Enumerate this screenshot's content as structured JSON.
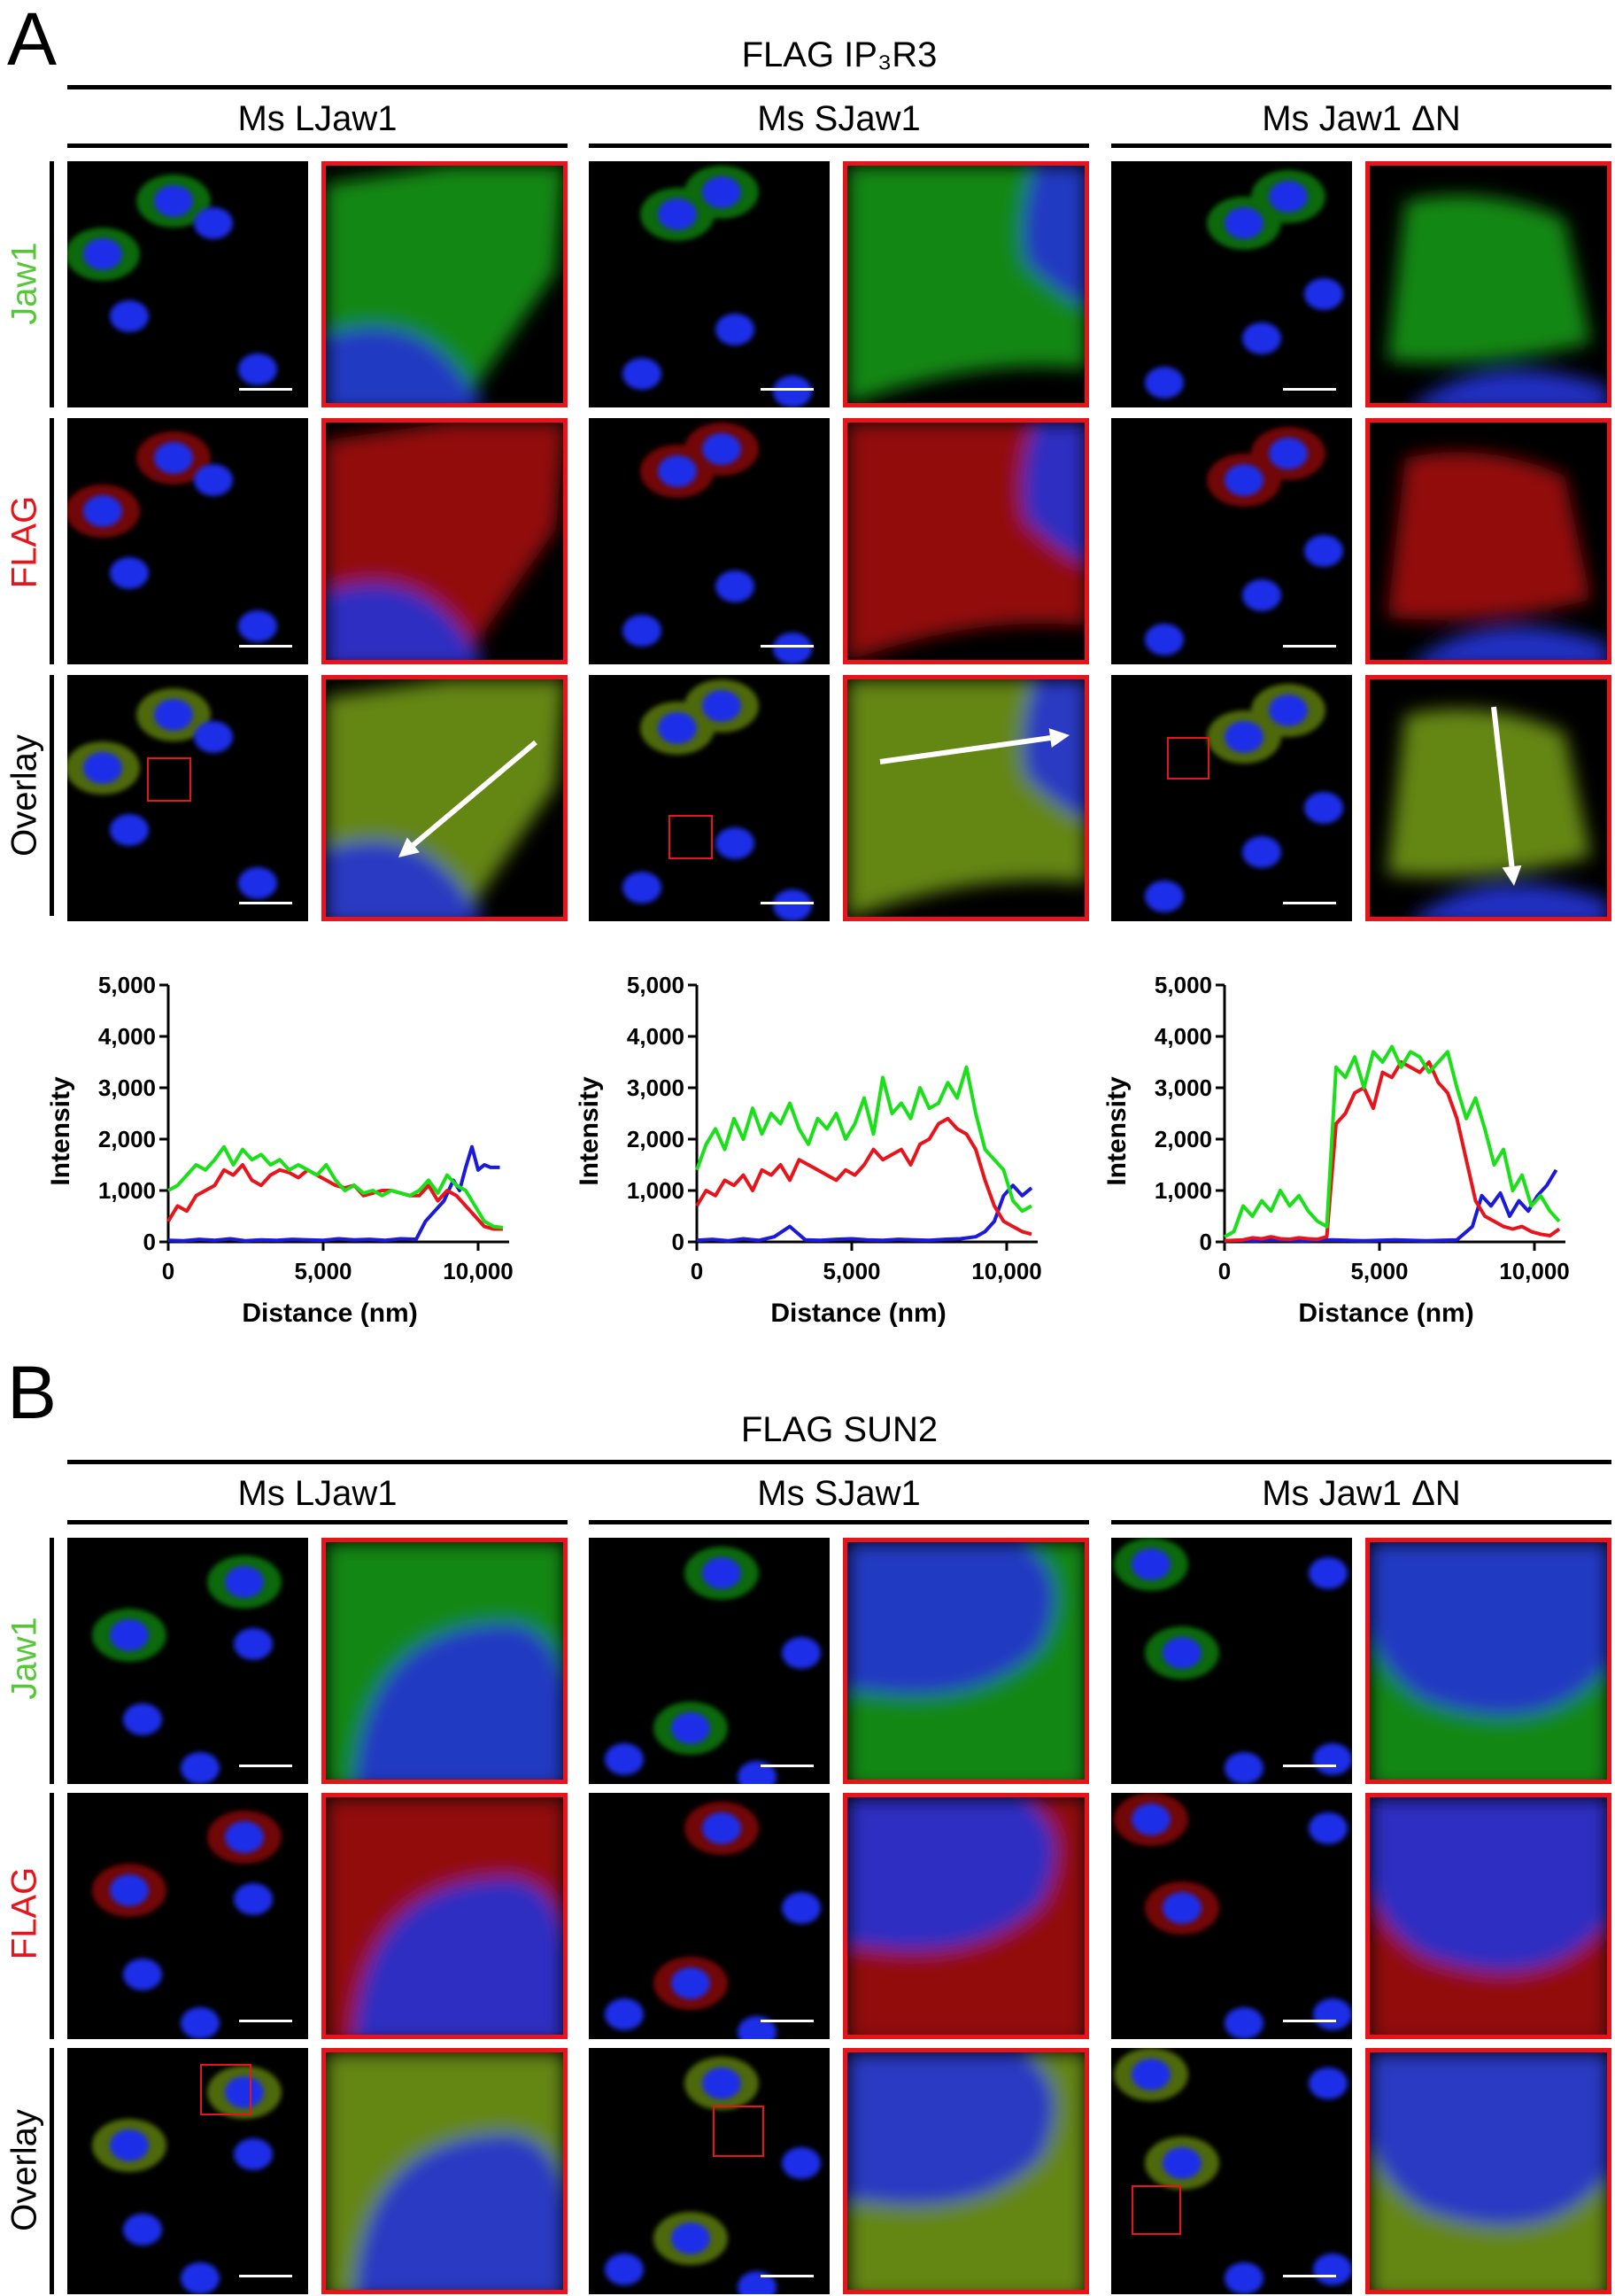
{
  "panel_a": {
    "letter": "A",
    "construct_title": "FLAG IP₃R3",
    "columns": [
      "Ms LJaw1",
      "Ms SJaw1",
      "Ms Jaw1 ΔN"
    ],
    "rows": [
      {
        "label": "Jaw1",
        "color": "#57c63a"
      },
      {
        "label": "FLAG",
        "color": "#e8141b"
      },
      {
        "label": "Overlay",
        "color": "#000000"
      }
    ]
  },
  "panel_b": {
    "letter": "B",
    "construct_title": "FLAG SUN2",
    "columns": [
      "Ms LJaw1",
      "Ms SJaw1",
      "Ms Jaw1 ΔN"
    ],
    "rows": [
      {
        "label": "Jaw1",
        "color": "#57c63a"
      },
      {
        "label": "FLAG",
        "color": "#e8141b"
      },
      {
        "label": "Overlay",
        "color": "#000000"
      }
    ]
  },
  "colors": {
    "green": "#19e019",
    "red": "#e8141b",
    "blue": "#1a1ad8"
  },
  "chart_data": [
    {
      "type": "line",
      "title": "",
      "xlabel": "Distance (nm)",
      "ylabel": "Intensity",
      "xlim": [
        0,
        11000
      ],
      "ylim": [
        0,
        5000
      ],
      "xticks": [
        "0",
        "5,000",
        "10,000"
      ],
      "xtick_values": [
        0,
        5000,
        10000
      ],
      "yticks": [
        "0",
        "1,000",
        "2,000",
        "3,000",
        "4,000",
        "5,000"
      ],
      "ytick_values": [
        0,
        1000,
        2000,
        3000,
        4000,
        5000
      ],
      "series": [
        {
          "color": "#19e019",
          "x": [
            0,
            300,
            600,
            900,
            1200,
            1500,
            1800,
            2100,
            2400,
            2700,
            3000,
            3300,
            3600,
            3900,
            4200,
            4500,
            4800,
            5100,
            5400,
            5700,
            6000,
            6300,
            6600,
            6900,
            7200,
            7500,
            7800,
            8100,
            8400,
            8700,
            9000,
            9300,
            9600,
            9900,
            10200,
            10500,
            10800
          ],
          "values": [
            1000,
            1100,
            1300,
            1500,
            1400,
            1600,
            1850,
            1500,
            1800,
            1600,
            1700,
            1500,
            1600,
            1400,
            1500,
            1400,
            1300,
            1500,
            1200,
            1000,
            1100,
            950,
            1000,
            900,
            1000,
            950,
            900,
            1000,
            1200,
            950,
            1300,
            1100,
            1000,
            700,
            400,
            300,
            280
          ]
        },
        {
          "color": "#e8141b",
          "x": [
            0,
            300,
            600,
            900,
            1200,
            1500,
            1800,
            2100,
            2400,
            2700,
            3000,
            3300,
            3600,
            3900,
            4200,
            4500,
            4800,
            5100,
            5400,
            5700,
            6000,
            6300,
            6600,
            6900,
            7200,
            7500,
            7800,
            8100,
            8400,
            8700,
            9000,
            9300,
            9600,
            9900,
            10200,
            10500,
            10800
          ],
          "values": [
            400,
            700,
            600,
            900,
            1000,
            1100,
            1400,
            1300,
            1500,
            1200,
            1100,
            1300,
            1400,
            1350,
            1250,
            1400,
            1300,
            1200,
            1100,
            1050,
            1100,
            900,
            950,
            1000,
            1000,
            950,
            900,
            900,
            1100,
            800,
            1000,
            900,
            700,
            500,
            300,
            250,
            250
          ]
        },
        {
          "color": "#1a1ad8",
          "x": [
            0,
            500,
            1000,
            1500,
            2000,
            2500,
            3000,
            3500,
            4000,
            4500,
            5000,
            5500,
            6000,
            6500,
            7000,
            7500,
            8000,
            8300,
            8600,
            8900,
            9200,
            9400,
            9600,
            9800,
            10000,
            10200,
            10400,
            10700
          ],
          "values": [
            30,
            20,
            50,
            30,
            60,
            20,
            40,
            30,
            50,
            40,
            30,
            60,
            40,
            50,
            30,
            60,
            50,
            400,
            600,
            800,
            1200,
            1000,
            1450,
            1850,
            1400,
            1500,
            1450,
            1450
          ]
        }
      ]
    },
    {
      "type": "line",
      "title": "",
      "xlabel": "Distance (nm)",
      "ylabel": "Intensity",
      "xlim": [
        0,
        11000
      ],
      "ylim": [
        0,
        5000
      ],
      "xticks": [
        "0",
        "5,000",
        "10,000"
      ],
      "xtick_values": [
        0,
        5000,
        10000
      ],
      "yticks": [
        "0",
        "1,000",
        "2,000",
        "3,000",
        "4,000",
        "5,000"
      ],
      "ytick_values": [
        0,
        1000,
        2000,
        3000,
        4000,
        5000
      ],
      "series": [
        {
          "color": "#19e019",
          "x": [
            0,
            300,
            600,
            900,
            1200,
            1500,
            1800,
            2100,
            2400,
            2700,
            3000,
            3300,
            3600,
            3900,
            4200,
            4500,
            4800,
            5100,
            5400,
            5700,
            6000,
            6300,
            6600,
            6900,
            7200,
            7500,
            7800,
            8100,
            8400,
            8700,
            9000,
            9300,
            9600,
            9900,
            10200,
            10500,
            10800
          ],
          "values": [
            1400,
            1900,
            2200,
            1800,
            2400,
            2000,
            2600,
            2100,
            2500,
            2300,
            2700,
            2200,
            1900,
            2400,
            2200,
            2500,
            2000,
            2300,
            2800,
            2100,
            3200,
            2500,
            2700,
            2400,
            3000,
            2600,
            2700,
            3100,
            2800,
            3400,
            2500,
            1800,
            1600,
            1400,
            800,
            600,
            700
          ]
        },
        {
          "color": "#e8141b",
          "x": [
            0,
            300,
            600,
            900,
            1200,
            1500,
            1800,
            2100,
            2400,
            2700,
            3000,
            3300,
            3600,
            3900,
            4200,
            4500,
            4800,
            5100,
            5400,
            5700,
            6000,
            6300,
            6600,
            6900,
            7200,
            7500,
            7800,
            8100,
            8400,
            8700,
            9000,
            9300,
            9600,
            9900,
            10200,
            10500,
            10800
          ],
          "values": [
            700,
            1000,
            900,
            1200,
            1100,
            1300,
            1000,
            1400,
            1300,
            1500,
            1200,
            1600,
            1500,
            1400,
            1300,
            1200,
            1400,
            1300,
            1500,
            1800,
            1600,
            1700,
            1800,
            1500,
            1900,
            2000,
            2300,
            2400,
            2200,
            2100,
            1800,
            1200,
            700,
            400,
            300,
            200,
            150
          ]
        },
        {
          "color": "#1a1ad8",
          "x": [
            0,
            500,
            1000,
            1500,
            2000,
            2500,
            3000,
            3500,
            4000,
            4500,
            5000,
            5500,
            6000,
            6500,
            7000,
            7500,
            8000,
            8500,
            9000,
            9300,
            9600,
            9900,
            10200,
            10500,
            10800
          ],
          "values": [
            30,
            50,
            20,
            60,
            30,
            100,
            300,
            40,
            30,
            50,
            60,
            40,
            30,
            50,
            40,
            30,
            50,
            60,
            100,
            200,
            400,
            900,
            1100,
            900,
            1050
          ]
        }
      ]
    },
    {
      "type": "line",
      "title": "",
      "xlabel": "Distance (nm)",
      "ylabel": "Intensity",
      "xlim": [
        0,
        11000
      ],
      "ylim": [
        0,
        5000
      ],
      "xticks": [
        "0",
        "5,000",
        "10,000"
      ],
      "xtick_values": [
        0,
        5000,
        10000
      ],
      "yticks": [
        "0",
        "1,000",
        "2,000",
        "3,000",
        "4,000",
        "5,000"
      ],
      "ytick_values": [
        0,
        1000,
        2000,
        3000,
        4000,
        5000
      ],
      "series": [
        {
          "color": "#19e019",
          "x": [
            0,
            300,
            600,
            900,
            1200,
            1500,
            1800,
            2100,
            2400,
            2700,
            3000,
            3300,
            3600,
            3900,
            4200,
            4500,
            4800,
            5100,
            5400,
            5700,
            6000,
            6300,
            6600,
            6900,
            7200,
            7500,
            7800,
            8100,
            8400,
            8700,
            9000,
            9300,
            9600,
            9900,
            10200,
            10500,
            10800
          ],
          "values": [
            100,
            200,
            700,
            500,
            800,
            600,
            1000,
            700,
            900,
            600,
            400,
            300,
            3400,
            3200,
            3600,
            3000,
            3700,
            3500,
            3800,
            3400,
            3700,
            3600,
            3300,
            3500,
            3700,
            3000,
            2400,
            2800,
            2200,
            1500,
            1800,
            1000,
            1300,
            700,
            900,
            600,
            400
          ]
        },
        {
          "color": "#e8141b",
          "x": [
            0,
            300,
            600,
            900,
            1200,
            1500,
            1800,
            2100,
            2400,
            2700,
            3000,
            3300,
            3600,
            3900,
            4200,
            4500,
            4800,
            5100,
            5400,
            5700,
            6000,
            6300,
            6600,
            6900,
            7200,
            7500,
            7800,
            8100,
            8400,
            8700,
            9000,
            9300,
            9600,
            9900,
            10200,
            10500,
            10800
          ],
          "values": [
            20,
            30,
            40,
            80,
            60,
            100,
            60,
            50,
            80,
            60,
            50,
            100,
            2300,
            2500,
            2900,
            3000,
            2600,
            3300,
            3200,
            3500,
            3400,
            3300,
            3500,
            3100,
            2900,
            2400,
            1600,
            800,
            500,
            400,
            300,
            250,
            300,
            200,
            150,
            120,
            250
          ]
        },
        {
          "color": "#1a1ad8",
          "x": [
            0,
            500,
            1000,
            1500,
            2000,
            2500,
            3000,
            3500,
            4000,
            4500,
            5000,
            5500,
            6000,
            6500,
            7000,
            7500,
            8000,
            8300,
            8600,
            8900,
            9200,
            9500,
            9800,
            10100,
            10400,
            10700
          ],
          "values": [
            20,
            30,
            20,
            40,
            30,
            20,
            30,
            40,
            30,
            20,
            30,
            40,
            30,
            20,
            30,
            40,
            300,
            900,
            700,
            950,
            500,
            800,
            600,
            900,
            1100,
            1400
          ]
        }
      ]
    }
  ]
}
